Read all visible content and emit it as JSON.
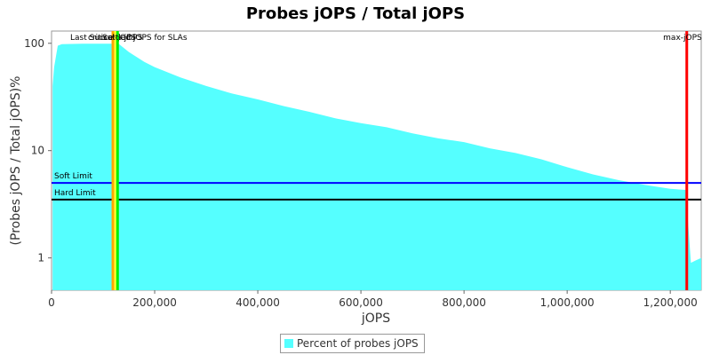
{
  "chart_data": {
    "type": "area",
    "title": "Probes jOPS / Total jOPS",
    "xlabel": "jOPS",
    "ylabel": "(Probes jOPS / Total jOPS)%",
    "xlim": [
      0,
      1260000
    ],
    "ylim": [
      0.5,
      130
    ],
    "yscale": "log",
    "x_ticks": [
      0,
      200000,
      400000,
      600000,
      800000,
      1000000,
      1200000
    ],
    "x_tick_labels": [
      "0",
      "200,000",
      "400,000",
      "600,000",
      "800,000",
      "1,000,000",
      "1,200,000"
    ],
    "y_ticks": [
      1,
      10,
      100
    ],
    "y_tick_labels": [
      "1",
      "10",
      "100"
    ],
    "grid": false,
    "legend_position": "bottom",
    "series": [
      {
        "name": "Percent of probes jOPS",
        "color": "#55ffff",
        "x": [
          2000,
          5000,
          12000,
          20000,
          60000,
          110000,
          130000,
          150000,
          180000,
          200000,
          250000,
          300000,
          350000,
          400000,
          450000,
          500000,
          550000,
          600000,
          650000,
          700000,
          750000,
          800000,
          850000,
          900000,
          950000,
          1000000,
          1050000,
          1100000,
          1150000,
          1200000,
          1230000,
          1240000,
          1250000,
          1260000
        ],
        "y": [
          40,
          60,
          95,
          98,
          99,
          99,
          99,
          83,
          67,
          60,
          48,
          40,
          34,
          30,
          26,
          23,
          20,
          18,
          16.5,
          14.5,
          13,
          12,
          10.5,
          9.5,
          8.3,
          7,
          6,
          5.3,
          4.8,
          4.4,
          4.3,
          0.9,
          0.95,
          1
        ]
      }
    ],
    "markers": [
      {
        "label": "Last Success jOPS",
        "x": 119000,
        "color": "#ffa500"
      },
      {
        "label": "critical-jOPS",
        "x": 124000,
        "color": "#ffff33"
      },
      {
        "label": "Settled jOPS for SLAs",
        "x": 128000,
        "color": "#00ee00"
      },
      {
        "label": "max-jOPS",
        "x": 1232000,
        "color": "#ff0000"
      }
    ],
    "thresholds": [
      {
        "label": "Soft Limit",
        "y": 5,
        "color": "#0000ff"
      },
      {
        "label": "Hard Limit",
        "y": 3.5,
        "color": "#000000"
      }
    ]
  }
}
